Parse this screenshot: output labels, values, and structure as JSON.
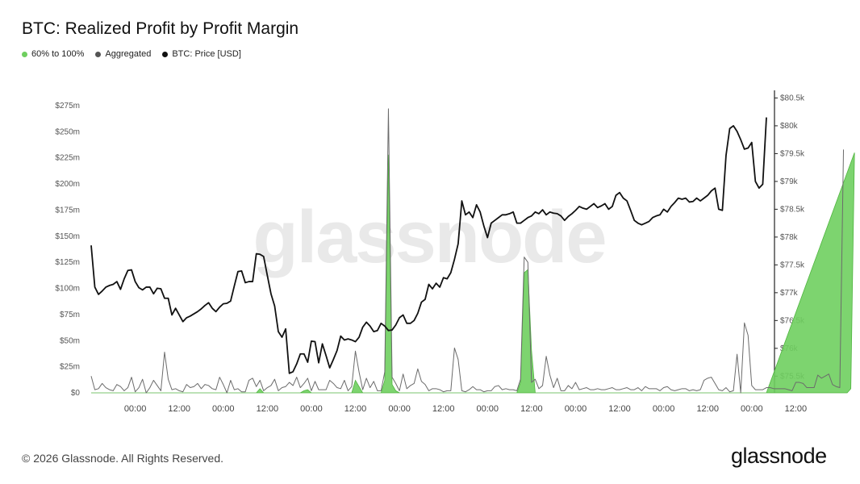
{
  "title": "BTC: Realized Profit by Profit Margin",
  "legend": [
    {
      "label": "60% to 100%",
      "color": "#6fcf5f"
    },
    {
      "label": "Aggregated",
      "color": "#555555"
    },
    {
      "label": "BTC: Price [USD]",
      "color": "#111111"
    }
  ],
  "footer": "© 2026 Glassnode. All Rights Reserved.",
  "logo": "glassnode",
  "watermark": "glassnode",
  "chart_data": {
    "type": "line",
    "left_axis": {
      "ticks": [
        "$0",
        "$25m",
        "$50m",
        "$75m",
        "$100m",
        "$125m",
        "$150m",
        "$175m",
        "$200m",
        "$225m",
        "$250m",
        "$275m"
      ],
      "ylim": [
        0,
        285
      ]
    },
    "right_axis": {
      "ticks": [
        "$75.5k",
        "$76k",
        "$76.5k",
        "$77k",
        "$77.5k",
        "$78k",
        "$78.5k",
        "$79k",
        "$79.5k",
        "$80k",
        "$80.5k"
      ],
      "ylim": [
        75200,
        80550
      ]
    },
    "x_ticks": [
      "00:00",
      "12:00",
      "00:00",
      "12:00",
      "00:00",
      "12:00",
      "00:00",
      "12:00",
      "00:00",
      "12:00",
      "00:00",
      "12:00",
      "00:00",
      "12:00",
      "00:00",
      "12:00"
    ],
    "series": [
      {
        "name": "BTC: Price [USD]",
        "color": "#111111",
        "axis": "right",
        "values": [
          77850,
          77100,
          76970,
          77030,
          77100,
          77130,
          77150,
          77200,
          77060,
          77250,
          77400,
          77410,
          77200,
          77090,
          77050,
          77100,
          77100,
          76980,
          77080,
          77070,
          76900,
          76900,
          76600,
          76720,
          76600,
          76480,
          76550,
          76580,
          76620,
          76660,
          76710,
          76770,
          76820,
          76720,
          76660,
          76740,
          76800,
          76810,
          76850,
          77120,
          77380,
          77390,
          77180,
          77200,
          77200,
          77700,
          77690,
          77650,
          77310,
          76980,
          76760,
          76300,
          76200,
          76350,
          75550,
          75580,
          75720,
          75900,
          75900,
          75750,
          76130,
          76120,
          75740,
          76080,
          75870,
          75650,
          75800,
          75960,
          76220,
          76150,
          76170,
          76150,
          76120,
          76200,
          76380,
          76470,
          76400,
          76300,
          76320,
          76450,
          76400,
          76320,
          76330,
          76420,
          76550,
          76600,
          76450,
          76450,
          76500,
          76630,
          76830,
          76880,
          77150,
          77070,
          77170,
          77100,
          77270,
          77250,
          77360,
          77600,
          77880,
          78650,
          78400,
          78450,
          78350,
          78580,
          78450,
          78200,
          77990,
          78250,
          78300,
          78350,
          78400,
          78400,
          78420,
          78450,
          78250,
          78250,
          78300,
          78350,
          78380,
          78450,
          78420,
          78490,
          78400,
          78450,
          78430,
          78420,
          78380,
          78300,
          78370,
          78420,
          78480,
          78550,
          78520,
          78500,
          78550,
          78600,
          78530,
          78560,
          78600,
          78500,
          78550,
          78750,
          78800,
          78700,
          78650,
          78480,
          78300,
          78250,
          78220,
          78250,
          78280,
          78350,
          78380,
          78400,
          78500,
          78450,
          78550,
          78620,
          78700,
          78680,
          78700,
          78630,
          78640,
          78700,
          78650,
          78700,
          78750,
          78830,
          78880,
          78500,
          78480,
          79470,
          79950,
          80000,
          79900,
          79750,
          79580,
          79600,
          79700,
          79000,
          78880,
          78950,
          80150
        ]
      },
      {
        "name": "Aggregated",
        "color": "#6b6b6b",
        "axis": "left",
        "values": [
          16,
          3,
          4,
          9,
          5,
          3,
          2,
          8,
          6,
          2,
          5,
          15,
          1,
          5,
          13,
          0,
          5,
          12,
          7,
          2,
          39,
          13,
          3,
          4,
          2,
          1,
          8,
          5,
          6,
          9,
          4,
          8,
          7,
          4,
          3,
          15,
          8,
          0,
          12,
          3,
          4,
          1,
          1,
          12,
          14,
          6,
          12,
          2,
          5,
          7,
          13,
          2,
          5,
          6,
          10,
          7,
          15,
          5,
          9,
          14,
          2,
          11,
          3,
          3,
          3,
          12,
          9,
          5,
          4,
          12,
          2,
          6,
          40,
          20,
          3,
          14,
          5,
          11,
          2,
          2,
          20,
          272,
          15,
          9,
          2,
          18,
          4,
          7,
          9,
          23,
          11,
          8,
          2,
          4,
          4,
          3,
          1,
          2,
          2,
          43,
          32,
          2,
          1,
          3,
          6,
          3,
          3,
          1,
          2,
          2,
          6,
          7,
          3,
          4,
          3,
          3,
          2,
          13,
          130,
          125,
          10,
          13,
          4,
          7,
          35,
          17,
          5,
          14,
          2,
          2,
          7,
          4,
          10,
          3,
          4,
          5,
          3,
          3,
          4,
          3,
          3,
          4,
          5,
          3,
          3,
          4,
          5,
          3,
          3,
          5,
          2,
          6,
          4,
          4,
          4,
          2,
          5,
          6,
          3,
          2,
          3,
          4,
          4,
          2,
          3,
          2,
          3,
          12,
          14,
          15,
          9,
          3,
          2,
          5,
          1,
          2,
          37,
          0,
          67,
          55,
          7,
          3,
          3,
          3,
          5,
          5,
          4,
          4,
          4,
          4,
          3,
          2,
          10,
          10,
          9,
          5,
          5,
          5,
          17,
          14,
          16,
          18,
          8,
          6,
          5,
          233
        ]
      },
      {
        "name": "60% to 100%",
        "color": "#6fcf5f",
        "axis": "left",
        "values": [
          0,
          0,
          0,
          0,
          0,
          0,
          0,
          0,
          0,
          0,
          0,
          0,
          0,
          0,
          0,
          0,
          0,
          0,
          0,
          0,
          0,
          0,
          0,
          0,
          0,
          0,
          0,
          0,
          0,
          0,
          0,
          0,
          0,
          0,
          0,
          0,
          0,
          0,
          0,
          0,
          0,
          0,
          0,
          0,
          0,
          0,
          4,
          0,
          0,
          0,
          0,
          0,
          0,
          0,
          0,
          0,
          0,
          0,
          2,
          3,
          0,
          0,
          0,
          0,
          0,
          0,
          0,
          0,
          0,
          0,
          0,
          0,
          12,
          6,
          0,
          0,
          0,
          0,
          0,
          0,
          12,
          228,
          8,
          2,
          0,
          0,
          0,
          0,
          0,
          0,
          0,
          0,
          0,
          0,
          0,
          0,
          0,
          0,
          0,
          0,
          0,
          0,
          0,
          0,
          0,
          0,
          0,
          0,
          0,
          0,
          0,
          0,
          0,
          0,
          0,
          0,
          0,
          10,
          115,
          118,
          40,
          0,
          0,
          0,
          0,
          0,
          0,
          0,
          0,
          0,
          0,
          0,
          0,
          0,
          0,
          0,
          0,
          0,
          0,
          0,
          0,
          0,
          0,
          0,
          0,
          0,
          0,
          0,
          0,
          0,
          0,
          0,
          0,
          0,
          0,
          0,
          0,
          0,
          0,
          0,
          0,
          0,
          0,
          0,
          0,
          0,
          0,
          0,
          0,
          0,
          0,
          0,
          0,
          0,
          0,
          0,
          0,
          0,
          0,
          0,
          0,
          0,
          0,
          0,
          0,
          0,
          0,
          0,
          0,
          0,
          0,
          0,
          0,
          0,
          0,
          0,
          0,
          0,
          0,
          0,
          0,
          0,
          0,
          0,
          0,
          0,
          0,
          4,
          230
        ]
      }
    ],
    "grid": false,
    "legend_position": "top-left"
  }
}
